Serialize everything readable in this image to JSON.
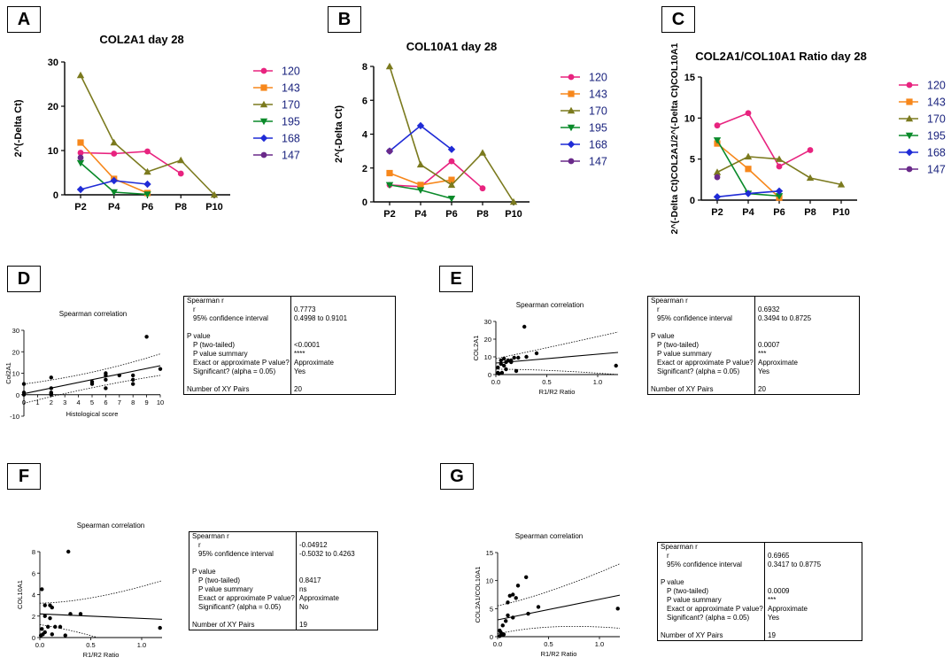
{
  "panels": {
    "A": "A",
    "B": "B",
    "C": "C",
    "D": "D",
    "E": "E",
    "F": "F",
    "G": "G"
  },
  "legend": {
    "series": [
      {
        "name": "120",
        "color": "#e8237f",
        "marker": "circle"
      },
      {
        "name": "143",
        "color": "#f7871b",
        "marker": "square"
      },
      {
        "name": "170",
        "color": "#7b7a1e",
        "marker": "triangle-up"
      },
      {
        "name": "195",
        "color": "#0a8a2a",
        "marker": "triangle-down"
      },
      {
        "name": "168",
        "color": "#1f2bd6",
        "marker": "diamond"
      },
      {
        "name": "147",
        "color": "#6a2a8a",
        "marker": "circle"
      }
    ]
  },
  "chart_data": [
    {
      "id": "A",
      "type": "line",
      "title": "COL2A1 day 28",
      "ylabel": "2^(-Delta Ct)",
      "xlabel": "",
      "categories": [
        "P2",
        "P4",
        "P6",
        "P8",
        "P10"
      ],
      "ylim": [
        0,
        30
      ],
      "yticks": [
        0,
        10,
        20,
        30
      ],
      "series": [
        {
          "name": "120",
          "values": [
            9.5,
            9.3,
            9.8,
            4.8,
            null
          ]
        },
        {
          "name": "143",
          "values": [
            11.8,
            3.6,
            0.4,
            null,
            null
          ]
        },
        {
          "name": "170",
          "values": [
            27.0,
            11.8,
            5.2,
            7.8,
            0
          ]
        },
        {
          "name": "195",
          "values": [
            7.2,
            0.6,
            0.1,
            null,
            null
          ]
        },
        {
          "name": "168",
          "values": [
            1.2,
            3.2,
            2.4,
            null,
            null
          ]
        },
        {
          "name": "147",
          "values": [
            8.4,
            null,
            null,
            null,
            null
          ]
        }
      ]
    },
    {
      "id": "B",
      "type": "line",
      "title": "COL10A1 day 28",
      "ylabel": "2^(-Delta Ct)",
      "xlabel": "",
      "categories": [
        "P2",
        "P4",
        "P6",
        "P8",
        "P10"
      ],
      "ylim": [
        0,
        8
      ],
      "yticks": [
        0,
        2,
        4,
        6,
        8
      ],
      "series": [
        {
          "name": "120",
          "values": [
            1.0,
            0.9,
            2.4,
            0.8,
            null
          ]
        },
        {
          "name": "143",
          "values": [
            1.7,
            1.0,
            1.3,
            null,
            null
          ]
        },
        {
          "name": "170",
          "values": [
            8.0,
            2.2,
            1.0,
            2.9,
            0
          ]
        },
        {
          "name": "195",
          "values": [
            1.0,
            0.7,
            0.2,
            null,
            null
          ]
        },
        {
          "name": "168",
          "values": [
            3.0,
            4.5,
            3.1,
            null,
            null
          ]
        },
        {
          "name": "147",
          "values": [
            3.0,
            null,
            null,
            null,
            null
          ]
        }
      ]
    },
    {
      "id": "C",
      "type": "line",
      "title": "COL2A1/COL10A1 Ratio day 28",
      "ylabel": "2^(-Delta Ct)COL2A1/2^(-Delta Ct)COL10A1",
      "xlabel": "",
      "categories": [
        "P2",
        "P4",
        "P6",
        "P8",
        "P10"
      ],
      "ylim": [
        0,
        15
      ],
      "yticks": [
        0,
        5,
        10,
        15
      ],
      "series": [
        {
          "name": "120",
          "values": [
            9.1,
            10.6,
            4.1,
            6.1,
            null
          ]
        },
        {
          "name": "143",
          "values": [
            6.9,
            3.8,
            0.3,
            null,
            null
          ]
        },
        {
          "name": "170",
          "values": [
            3.4,
            5.3,
            5.0,
            2.7,
            1.9
          ]
        },
        {
          "name": "195",
          "values": [
            7.3,
            0.8,
            0.5,
            null,
            null
          ]
        },
        {
          "name": "168",
          "values": [
            0.4,
            0.8,
            1.1,
            null,
            null
          ]
        },
        {
          "name": "147",
          "values": [
            2.8,
            null,
            null,
            null,
            null
          ]
        }
      ]
    },
    {
      "id": "D",
      "type": "scatter",
      "title": "Spearman correlation",
      "xlabel": "Histological score",
      "ylabel": "Col2A1",
      "xlim": [
        0,
        10
      ],
      "ylim": [
        -10,
        30
      ],
      "xticks": [
        0,
        1,
        2,
        3,
        4,
        5,
        6,
        7,
        8,
        9,
        10
      ],
      "yticks": [
        -10,
        0,
        10,
        20,
        30
      ],
      "points": [
        [
          0,
          5
        ],
        [
          0,
          1
        ],
        [
          2,
          8
        ],
        [
          2,
          3
        ],
        [
          2,
          0.5
        ],
        [
          2,
          0
        ],
        [
          5,
          6
        ],
        [
          6,
          3
        ],
        [
          6,
          9
        ],
        [
          6,
          10
        ],
        [
          6,
          7
        ],
        [
          7,
          9
        ],
        [
          8,
          5
        ],
        [
          8,
          7
        ],
        [
          8,
          9
        ],
        [
          9,
          27
        ],
        [
          10,
          12
        ],
        [
          0,
          0
        ],
        [
          5,
          5
        ],
        [
          2,
          1
        ]
      ],
      "fit": [
        [
          0,
          0.5
        ],
        [
          10,
          13.5
        ]
      ],
      "ci_upper": [
        [
          0,
          5
        ],
        [
          5,
          9
        ],
        [
          10,
          19
        ]
      ],
      "ci_lower": [
        [
          0,
          -4
        ],
        [
          5,
          4
        ],
        [
          10,
          9
        ]
      ]
    },
    {
      "id": "E",
      "type": "scatter",
      "title": "Spearman correlation",
      "xlabel": "R1/R2 Ratio",
      "ylabel": "COL2A1",
      "xlim": [
        0,
        1.2
      ],
      "ylim": [
        0,
        30
      ],
      "xticks": [
        0.0,
        0.5,
        1.0
      ],
      "yticks": [
        0,
        10,
        20,
        30
      ],
      "points": [
        [
          0.28,
          27
        ],
        [
          0.4,
          12
        ],
        [
          0.3,
          10
        ],
        [
          0.22,
          9.5
        ],
        [
          0.18,
          9.5
        ],
        [
          0.15,
          8
        ],
        [
          0.12,
          8
        ],
        [
          0.1,
          7
        ],
        [
          0.08,
          5
        ],
        [
          0.05,
          6
        ],
        [
          0.02,
          4
        ],
        [
          0.02,
          1
        ],
        [
          0.03,
          0.5
        ],
        [
          0.06,
          1
        ],
        [
          0.1,
          3
        ],
        [
          0.08,
          9
        ],
        [
          0.15,
          7
        ],
        [
          0.2,
          2
        ],
        [
          1.18,
          5
        ],
        [
          0.05,
          8
        ]
      ],
      "fit": [
        [
          0,
          6.5
        ],
        [
          1.2,
          12.5
        ]
      ],
      "ci_upper": [
        [
          0,
          9
        ],
        [
          0.5,
          15
        ],
        [
          1.2,
          24
        ]
      ],
      "ci_lower": [
        [
          0,
          3
        ],
        [
          0.5,
          3
        ],
        [
          1.2,
          0
        ]
      ]
    },
    {
      "id": "F",
      "type": "scatter",
      "title": "Spearman correlation",
      "xlabel": "R1/R2 Ratio",
      "ylabel": "COL10A1",
      "xlim": [
        0,
        1.2
      ],
      "ylim": [
        0,
        8
      ],
      "xticks": [
        0.0,
        0.5,
        1.0
      ],
      "yticks": [
        0,
        2,
        4,
        6,
        8
      ],
      "points": [
        [
          0.28,
          8
        ],
        [
          0.02,
          4.5
        ],
        [
          0.05,
          3
        ],
        [
          0.1,
          3
        ],
        [
          0.12,
          2.8
        ],
        [
          0.3,
          2.2
        ],
        [
          0.4,
          2.2
        ],
        [
          0.05,
          2
        ],
        [
          0.1,
          1.8
        ],
        [
          0.08,
          1
        ],
        [
          0.15,
          1
        ],
        [
          0.2,
          1
        ],
        [
          0.02,
          0.8
        ],
        [
          0.03,
          0.3
        ],
        [
          0.05,
          0.5
        ],
        [
          0.12,
          0.3
        ],
        [
          0.25,
          0.2
        ],
        [
          0.01,
          0.2
        ],
        [
          1.18,
          0.9
        ]
      ],
      "fit": [
        [
          0,
          2.2
        ],
        [
          1.2,
          1.7
        ]
      ],
      "ci_upper": [
        [
          0,
          3.2
        ],
        [
          0.5,
          3.3
        ],
        [
          1.2,
          5.3
        ]
      ],
      "ci_lower": [
        [
          0,
          1.2
        ],
        [
          0.5,
          0.5
        ],
        [
          1.2,
          -2
        ]
      ]
    },
    {
      "id": "G",
      "type": "scatter",
      "title": "Spearman correlation",
      "xlabel": "R1/R2 Ratio",
      "ylabel": "COL2A1/COL10A1",
      "xlim": [
        0,
        1.2
      ],
      "ylim": [
        0,
        15
      ],
      "xticks": [
        0.0,
        0.5,
        1.0
      ],
      "yticks": [
        0,
        5,
        10,
        15
      ],
      "points": [
        [
          0.28,
          10.6
        ],
        [
          0.2,
          9.1
        ],
        [
          0.15,
          7.5
        ],
        [
          0.12,
          7.3
        ],
        [
          0.18,
          6.9
        ],
        [
          0.1,
          6.1
        ],
        [
          0.4,
          5.3
        ],
        [
          0.3,
          4.1
        ],
        [
          0.1,
          3.8
        ],
        [
          0.15,
          3.4
        ],
        [
          0.08,
          2.8
        ],
        [
          0.05,
          2
        ],
        [
          0.02,
          1.1
        ],
        [
          0.03,
          0.8
        ],
        [
          0.04,
          0.5
        ],
        [
          0.05,
          0.3
        ],
        [
          0.06,
          0.4
        ],
        [
          0.02,
          0.1
        ],
        [
          1.18,
          5
        ]
      ],
      "fit": [
        [
          0,
          3.0
        ],
        [
          1.2,
          7.4
        ]
      ],
      "ci_upper": [
        [
          0,
          5.5
        ],
        [
          0.5,
          7.5
        ],
        [
          1.2,
          13
        ]
      ],
      "ci_lower": [
        [
          0,
          0.5
        ],
        [
          0.5,
          2.5
        ],
        [
          1.2,
          1.5
        ]
      ]
    }
  ],
  "stats_tables": {
    "D": {
      "rows": [
        {
          "k": "Spearman r",
          "v": "",
          "indent": false
        },
        {
          "k": "r",
          "v": "0.7773",
          "indent": true
        },
        {
          "k": "95% confidence interval",
          "v": "0.4998 to 0.9101",
          "indent": true
        },
        {
          "k": "",
          "v": "",
          "indent": false
        },
        {
          "k": "P value",
          "v": "",
          "indent": false
        },
        {
          "k": "P (two-tailed)",
          "v": "<0.0001",
          "indent": true
        },
        {
          "k": "P value summary",
          "v": "****",
          "indent": true
        },
        {
          "k": "Exact or approximate P value?",
          "v": "Approximate",
          "indent": true
        },
        {
          "k": "Significant? (alpha = 0.05)",
          "v": "Yes",
          "indent": true
        },
        {
          "k": "",
          "v": "",
          "indent": false
        },
        {
          "k": "Number of XY Pairs",
          "v": "20",
          "indent": false
        }
      ]
    },
    "E": {
      "rows": [
        {
          "k": "Spearman r",
          "v": "",
          "indent": false
        },
        {
          "k": "r",
          "v": "0.6932",
          "indent": true
        },
        {
          "k": "95% confidence interval",
          "v": "0.3494 to 0.8725",
          "indent": true
        },
        {
          "k": "",
          "v": "",
          "indent": false
        },
        {
          "k": "P value",
          "v": "",
          "indent": false
        },
        {
          "k": "P (two-tailed)",
          "v": "0.0007",
          "indent": true
        },
        {
          "k": "P value summary",
          "v": "***",
          "indent": true
        },
        {
          "k": "Exact or approximate P value?",
          "v": "Approximate",
          "indent": true
        },
        {
          "k": "Significant? (alpha = 0.05)",
          "v": "Yes",
          "indent": true
        },
        {
          "k": "",
          "v": "",
          "indent": false
        },
        {
          "k": "Number of XY Pairs",
          "v": "20",
          "indent": false
        }
      ]
    },
    "F": {
      "rows": [
        {
          "k": "Spearman r",
          "v": "",
          "indent": false
        },
        {
          "k": "r",
          "v": "-0.04912",
          "indent": true
        },
        {
          "k": "95% confidence interval",
          "v": "-0.5032 to 0.4263",
          "indent": true
        },
        {
          "k": "",
          "v": "",
          "indent": false
        },
        {
          "k": "P value",
          "v": "",
          "indent": false
        },
        {
          "k": "P (two-tailed)",
          "v": "0.8417",
          "indent": true
        },
        {
          "k": "P value summary",
          "v": "ns",
          "indent": true
        },
        {
          "k": "Exact or approximate P value?",
          "v": "Approximate",
          "indent": true
        },
        {
          "k": "Significant? (alpha = 0.05)",
          "v": "No",
          "indent": true
        },
        {
          "k": "",
          "v": "",
          "indent": false
        },
        {
          "k": "Number of XY Pairs",
          "v": "19",
          "indent": false
        }
      ]
    },
    "G": {
      "rows": [
        {
          "k": "Spearman r",
          "v": "",
          "indent": false
        },
        {
          "k": "r",
          "v": "0.6965",
          "indent": true
        },
        {
          "k": "95% confidence interval",
          "v": "0.3417 to 0.8775",
          "indent": true
        },
        {
          "k": "",
          "v": "",
          "indent": false
        },
        {
          "k": "P value",
          "v": "",
          "indent": false
        },
        {
          "k": "P (two-tailed)",
          "v": "0.0009",
          "indent": true
        },
        {
          "k": "P value summary",
          "v": "***",
          "indent": true
        },
        {
          "k": "Exact or approximate P value?",
          "v": "Approximate",
          "indent": true
        },
        {
          "k": "Significant? (alpha = 0.05)",
          "v": "Yes",
          "indent": true
        },
        {
          "k": "",
          "v": "",
          "indent": false
        },
        {
          "k": "Number of XY Pairs",
          "v": "19",
          "indent": false
        }
      ]
    }
  }
}
